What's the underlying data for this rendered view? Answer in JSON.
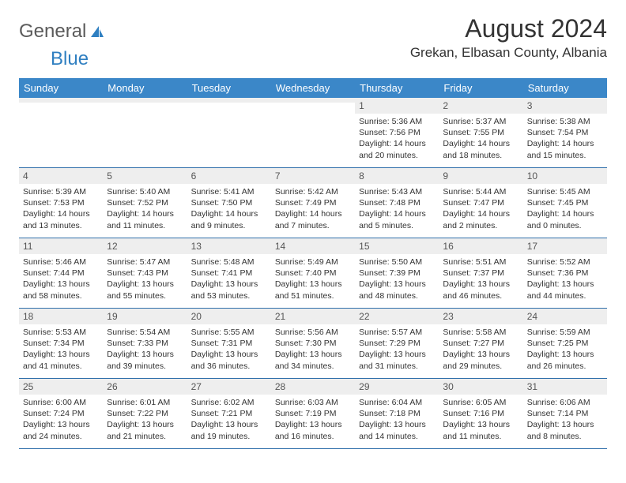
{
  "logo": {
    "text_gray": "General",
    "text_blue": "Blue"
  },
  "title": "August 2024",
  "location": "Grekan, Elbasan County, Albania",
  "colors": {
    "header_bg": "#3b87c8",
    "header_text": "#ffffff",
    "daynum_bg": "#eeeeee",
    "border": "#2f6faa",
    "body_text": "#333333"
  },
  "typography": {
    "title_fontsize": 32,
    "location_fontsize": 17,
    "dayheader_fontsize": 13,
    "daynum_fontsize": 12,
    "info_fontsize": 10.5,
    "font_family": "Arial"
  },
  "day_names": [
    "Sunday",
    "Monday",
    "Tuesday",
    "Wednesday",
    "Thursday",
    "Friday",
    "Saturday"
  ],
  "weeks": [
    [
      {
        "n": "",
        "sunrise": "",
        "sunset": "",
        "daylight": ""
      },
      {
        "n": "",
        "sunrise": "",
        "sunset": "",
        "daylight": ""
      },
      {
        "n": "",
        "sunrise": "",
        "sunset": "",
        "daylight": ""
      },
      {
        "n": "",
        "sunrise": "",
        "sunset": "",
        "daylight": ""
      },
      {
        "n": "1",
        "sunrise": "Sunrise: 5:36 AM",
        "sunset": "Sunset: 7:56 PM",
        "daylight": "Daylight: 14 hours and 20 minutes."
      },
      {
        "n": "2",
        "sunrise": "Sunrise: 5:37 AM",
        "sunset": "Sunset: 7:55 PM",
        "daylight": "Daylight: 14 hours and 18 minutes."
      },
      {
        "n": "3",
        "sunrise": "Sunrise: 5:38 AM",
        "sunset": "Sunset: 7:54 PM",
        "daylight": "Daylight: 14 hours and 15 minutes."
      }
    ],
    [
      {
        "n": "4",
        "sunrise": "Sunrise: 5:39 AM",
        "sunset": "Sunset: 7:53 PM",
        "daylight": "Daylight: 14 hours and 13 minutes."
      },
      {
        "n": "5",
        "sunrise": "Sunrise: 5:40 AM",
        "sunset": "Sunset: 7:52 PM",
        "daylight": "Daylight: 14 hours and 11 minutes."
      },
      {
        "n": "6",
        "sunrise": "Sunrise: 5:41 AM",
        "sunset": "Sunset: 7:50 PM",
        "daylight": "Daylight: 14 hours and 9 minutes."
      },
      {
        "n": "7",
        "sunrise": "Sunrise: 5:42 AM",
        "sunset": "Sunset: 7:49 PM",
        "daylight": "Daylight: 14 hours and 7 minutes."
      },
      {
        "n": "8",
        "sunrise": "Sunrise: 5:43 AM",
        "sunset": "Sunset: 7:48 PM",
        "daylight": "Daylight: 14 hours and 5 minutes."
      },
      {
        "n": "9",
        "sunrise": "Sunrise: 5:44 AM",
        "sunset": "Sunset: 7:47 PM",
        "daylight": "Daylight: 14 hours and 2 minutes."
      },
      {
        "n": "10",
        "sunrise": "Sunrise: 5:45 AM",
        "sunset": "Sunset: 7:45 PM",
        "daylight": "Daylight: 14 hours and 0 minutes."
      }
    ],
    [
      {
        "n": "11",
        "sunrise": "Sunrise: 5:46 AM",
        "sunset": "Sunset: 7:44 PM",
        "daylight": "Daylight: 13 hours and 58 minutes."
      },
      {
        "n": "12",
        "sunrise": "Sunrise: 5:47 AM",
        "sunset": "Sunset: 7:43 PM",
        "daylight": "Daylight: 13 hours and 55 minutes."
      },
      {
        "n": "13",
        "sunrise": "Sunrise: 5:48 AM",
        "sunset": "Sunset: 7:41 PM",
        "daylight": "Daylight: 13 hours and 53 minutes."
      },
      {
        "n": "14",
        "sunrise": "Sunrise: 5:49 AM",
        "sunset": "Sunset: 7:40 PM",
        "daylight": "Daylight: 13 hours and 51 minutes."
      },
      {
        "n": "15",
        "sunrise": "Sunrise: 5:50 AM",
        "sunset": "Sunset: 7:39 PM",
        "daylight": "Daylight: 13 hours and 48 minutes."
      },
      {
        "n": "16",
        "sunrise": "Sunrise: 5:51 AM",
        "sunset": "Sunset: 7:37 PM",
        "daylight": "Daylight: 13 hours and 46 minutes."
      },
      {
        "n": "17",
        "sunrise": "Sunrise: 5:52 AM",
        "sunset": "Sunset: 7:36 PM",
        "daylight": "Daylight: 13 hours and 44 minutes."
      }
    ],
    [
      {
        "n": "18",
        "sunrise": "Sunrise: 5:53 AM",
        "sunset": "Sunset: 7:34 PM",
        "daylight": "Daylight: 13 hours and 41 minutes."
      },
      {
        "n": "19",
        "sunrise": "Sunrise: 5:54 AM",
        "sunset": "Sunset: 7:33 PM",
        "daylight": "Daylight: 13 hours and 39 minutes."
      },
      {
        "n": "20",
        "sunrise": "Sunrise: 5:55 AM",
        "sunset": "Sunset: 7:31 PM",
        "daylight": "Daylight: 13 hours and 36 minutes."
      },
      {
        "n": "21",
        "sunrise": "Sunrise: 5:56 AM",
        "sunset": "Sunset: 7:30 PM",
        "daylight": "Daylight: 13 hours and 34 minutes."
      },
      {
        "n": "22",
        "sunrise": "Sunrise: 5:57 AM",
        "sunset": "Sunset: 7:29 PM",
        "daylight": "Daylight: 13 hours and 31 minutes."
      },
      {
        "n": "23",
        "sunrise": "Sunrise: 5:58 AM",
        "sunset": "Sunset: 7:27 PM",
        "daylight": "Daylight: 13 hours and 29 minutes."
      },
      {
        "n": "24",
        "sunrise": "Sunrise: 5:59 AM",
        "sunset": "Sunset: 7:25 PM",
        "daylight": "Daylight: 13 hours and 26 minutes."
      }
    ],
    [
      {
        "n": "25",
        "sunrise": "Sunrise: 6:00 AM",
        "sunset": "Sunset: 7:24 PM",
        "daylight": "Daylight: 13 hours and 24 minutes."
      },
      {
        "n": "26",
        "sunrise": "Sunrise: 6:01 AM",
        "sunset": "Sunset: 7:22 PM",
        "daylight": "Daylight: 13 hours and 21 minutes."
      },
      {
        "n": "27",
        "sunrise": "Sunrise: 6:02 AM",
        "sunset": "Sunset: 7:21 PM",
        "daylight": "Daylight: 13 hours and 19 minutes."
      },
      {
        "n": "28",
        "sunrise": "Sunrise: 6:03 AM",
        "sunset": "Sunset: 7:19 PM",
        "daylight": "Daylight: 13 hours and 16 minutes."
      },
      {
        "n": "29",
        "sunrise": "Sunrise: 6:04 AM",
        "sunset": "Sunset: 7:18 PM",
        "daylight": "Daylight: 13 hours and 14 minutes."
      },
      {
        "n": "30",
        "sunrise": "Sunrise: 6:05 AM",
        "sunset": "Sunset: 7:16 PM",
        "daylight": "Daylight: 13 hours and 11 minutes."
      },
      {
        "n": "31",
        "sunrise": "Sunrise: 6:06 AM",
        "sunset": "Sunset: 7:14 PM",
        "daylight": "Daylight: 13 hours and 8 minutes."
      }
    ]
  ]
}
